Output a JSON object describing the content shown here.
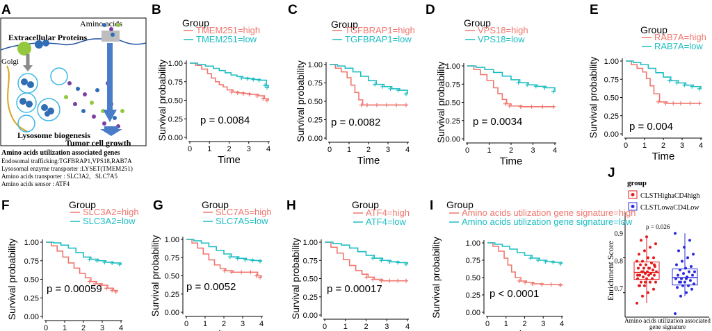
{
  "colors": {
    "high": "#F0766E",
    "low": "#1CBDC2",
    "red": "#E31A1C",
    "blue": "#2B2BDB"
  },
  "panel_a": {
    "label": "A",
    "amino_acids": "Amino acids",
    "extracellular": "Extracellular Proteins",
    "golgi": "Golgi",
    "lysosome": "Lysosome biogenesis",
    "tumor": "Tumor cell growth",
    "genes_title": "Amino acids utilization associated genes",
    "gene_lines": [
      "Endosomal trafficking:TGFBRAP1,VPS18,RAB7A",
      "Lysosomal enzyme transporter :LYSET(TMEM251)",
      "Amino acids transporter : SLC3A2,   SLC7A5",
      "Amino acids sensor : ATF4"
    ]
  },
  "panel_j": {
    "label": "J",
    "legend_title": "group",
    "groups": [
      "CLSTHighaCD4high",
      "CLSTLowaCD4Low"
    ],
    "ylabel": "Enrichment Score",
    "yticks": [
      "0.9",
      "0.8",
      "0.7"
    ],
    "xlabel_line1": "Amino acids utilization associated",
    "xlabel_line2": "gene signature",
    "p_text": "p = 0.026"
  },
  "chart_data": [
    {
      "type": "line",
      "label": "B",
      "group_title": "Group",
      "legend": [
        "TMEM251=high",
        "TMEM251=low"
      ],
      "ylabel": "Survival probability",
      "xlabel": "Time",
      "xticks": [
        "0",
        "1",
        "2",
        "3",
        "4"
      ],
      "yticks": [
        "0.00",
        "0.25",
        "0.50",
        "0.75",
        "1.00"
      ],
      "p_text": "p = 0.0084",
      "series": [
        {
          "name": "high",
          "x": [
            0,
            0.3,
            0.6,
            0.9,
            1.1,
            1.3,
            1.5,
            1.7,
            1.9,
            2.2,
            2.5,
            2.8,
            3.1,
            3.5,
            3.8,
            4.0
          ],
          "y": [
            1,
            0.97,
            0.92,
            0.86,
            0.8,
            0.75,
            0.71,
            0.68,
            0.64,
            0.61,
            0.6,
            0.59,
            0.58,
            0.56,
            0.52,
            0.5
          ]
        },
        {
          "name": "low",
          "x": [
            0,
            0.4,
            0.8,
            1.2,
            1.5,
            1.8,
            2.1,
            2.4,
            2.7,
            3.0,
            3.3,
            3.6,
            3.9,
            4.0
          ],
          "y": [
            1,
            0.98,
            0.96,
            0.93,
            0.9,
            0.87,
            0.84,
            0.82,
            0.8,
            0.79,
            0.78,
            0.77,
            0.7,
            0.67
          ]
        }
      ]
    },
    {
      "type": "line",
      "label": "C",
      "group_title": "Group",
      "legend": [
        "TGFBRAP1=high",
        "TGFBRAP1=low"
      ],
      "ylabel": "Survival probability",
      "xlabel": "Time",
      "xticks": [
        "0",
        "1",
        "2",
        "3",
        "4"
      ],
      "yticks": [
        "0.00",
        "0.25",
        "0.50",
        "0.75",
        "1.00"
      ],
      "p_text": "p = 0.0082",
      "series": [
        {
          "name": "high",
          "x": [
            0,
            0.3,
            0.6,
            0.9,
            1.1,
            1.3,
            1.5,
            1.7,
            2.0,
            2.5,
            3.0,
            3.5,
            4.0
          ],
          "y": [
            1,
            0.95,
            0.9,
            0.82,
            0.72,
            0.62,
            0.52,
            0.45,
            0.45,
            0.45,
            0.45,
            0.45,
            0.45
          ]
        },
        {
          "name": "low",
          "x": [
            0,
            0.4,
            0.8,
            1.2,
            1.6,
            2.0,
            2.4,
            2.8,
            3.2,
            3.6,
            4.0
          ],
          "y": [
            1,
            0.98,
            0.95,
            0.9,
            0.84,
            0.78,
            0.73,
            0.7,
            0.67,
            0.65,
            0.6
          ]
        }
      ]
    },
    {
      "type": "line",
      "label": "D",
      "group_title": "Group",
      "legend": [
        "VPS18=high",
        "VPS18=low"
      ],
      "ylabel": "Survival probability",
      "xlabel": "Time",
      "xticks": [
        "0",
        "1",
        "2",
        "3",
        "4"
      ],
      "yticks": [
        "0.00",
        "0.25",
        "0.50",
        "0.75",
        "1.00"
      ],
      "p_text": "p = 0.0034",
      "series": [
        {
          "name": "high",
          "x": [
            0,
            0.3,
            0.6,
            0.9,
            1.2,
            1.4,
            1.6,
            1.8,
            2.0,
            2.5,
            3.0,
            3.5,
            4.0
          ],
          "y": [
            1,
            0.95,
            0.88,
            0.8,
            0.7,
            0.62,
            0.54,
            0.48,
            0.45,
            0.44,
            0.44,
            0.44,
            0.44
          ]
        },
        {
          "name": "low",
          "x": [
            0,
            0.4,
            0.8,
            1.2,
            1.6,
            2.0,
            2.4,
            2.8,
            3.2,
            3.6,
            4.0
          ],
          "y": [
            1,
            0.98,
            0.95,
            0.91,
            0.86,
            0.81,
            0.77,
            0.74,
            0.72,
            0.7,
            0.65
          ]
        }
      ]
    },
    {
      "type": "line",
      "label": "E",
      "group_title": "Group",
      "legend": [
        "RAB7A=high",
        "RAB7A=low"
      ],
      "ylabel": "Survival probability",
      "xlabel": "Time",
      "xticks": [
        "0",
        "1",
        "2",
        "3",
        "4"
      ],
      "yticks": [
        "0.00",
        "0.25",
        "0.50",
        "0.75",
        "1.00"
      ],
      "p_text": "p = 0.004",
      "series": [
        {
          "name": "high",
          "x": [
            0,
            0.3,
            0.6,
            0.9,
            1.1,
            1.3,
            1.5,
            1.8,
            2.2,
            2.6,
            3.0,
            3.5,
            4.0
          ],
          "y": [
            1,
            0.95,
            0.9,
            0.85,
            0.76,
            0.66,
            0.55,
            0.44,
            0.42,
            0.42,
            0.42,
            0.42,
            0.42
          ]
        },
        {
          "name": "low",
          "x": [
            0,
            0.4,
            0.8,
            1.2,
            1.6,
            2.0,
            2.4,
            2.8,
            3.2,
            3.6,
            4.0
          ],
          "y": [
            1,
            0.98,
            0.95,
            0.9,
            0.84,
            0.78,
            0.73,
            0.7,
            0.67,
            0.65,
            0.62
          ]
        }
      ]
    },
    {
      "type": "line",
      "label": "F",
      "group_title": "Group",
      "legend": [
        "SLC3A2=high",
        "SLC3A2=low"
      ],
      "ylabel": "Survival probability",
      "xlabel": "Time",
      "xticks": [
        "0",
        "1",
        "2",
        "3",
        "4"
      ],
      "yticks": [
        "0.00",
        "0.25",
        "0.50",
        "0.75",
        "1.00"
      ],
      "p_text": "p = 0.00059",
      "series": [
        {
          "name": "high",
          "x": [
            0,
            0.3,
            0.6,
            0.9,
            1.2,
            1.5,
            1.8,
            2.1,
            2.4,
            2.7,
            3.0,
            3.3,
            3.6,
            3.8
          ],
          "y": [
            1,
            0.95,
            0.88,
            0.8,
            0.72,
            0.65,
            0.58,
            0.52,
            0.47,
            0.44,
            0.42,
            0.38,
            0.35,
            0.33
          ]
        },
        {
          "name": "low",
          "x": [
            0,
            0.4,
            0.8,
            1.2,
            1.6,
            2.0,
            2.4,
            2.8,
            3.2,
            3.6,
            4.0
          ],
          "y": [
            1,
            0.99,
            0.96,
            0.92,
            0.86,
            0.8,
            0.77,
            0.75,
            0.73,
            0.72,
            0.7
          ]
        }
      ]
    },
    {
      "type": "line",
      "label": "G",
      "group_title": "Group",
      "legend": [
        "SLC7A5=high",
        "SLC7A5=low"
      ],
      "ylabel": "Survival probability",
      "xlabel": "Time",
      "xticks": [
        "0",
        "1",
        "2",
        "3",
        "4"
      ],
      "yticks": [
        "0.00",
        "0.25",
        "0.50",
        "0.75",
        "1.00"
      ],
      "p_text": "p = 0.0052",
      "series": [
        {
          "name": "high",
          "x": [
            0,
            0.3,
            0.6,
            0.9,
            1.2,
            1.5,
            1.8,
            2.1,
            2.5,
            3.0,
            3.5,
            3.8,
            4.0
          ],
          "y": [
            1,
            0.95,
            0.88,
            0.8,
            0.72,
            0.65,
            0.6,
            0.57,
            0.55,
            0.55,
            0.55,
            0.5,
            0.48
          ]
        },
        {
          "name": "low",
          "x": [
            0,
            0.4,
            0.8,
            1.2,
            1.6,
            2.0,
            2.4,
            2.8,
            3.2,
            3.6,
            4.0
          ],
          "y": [
            1,
            0.98,
            0.95,
            0.9,
            0.85,
            0.8,
            0.76,
            0.74,
            0.72,
            0.71,
            0.7
          ]
        }
      ]
    },
    {
      "type": "line",
      "label": "H",
      "group_title": "Group",
      "legend": [
        "ATF4=high",
        "ATF4=low"
      ],
      "ylabel": "Survival probability",
      "xlabel": "Time",
      "xticks": [
        "0",
        "1",
        "2",
        "3",
        "4"
      ],
      "yticks": [
        "0.00",
        "0.25",
        "0.50",
        "0.75",
        "1.00"
      ],
      "p_text": "p = 0.00017",
      "series": [
        {
          "name": "high",
          "x": [
            0,
            0.3,
            0.6,
            0.9,
            1.2,
            1.5,
            1.8,
            2.1,
            2.4,
            2.8,
            3.2,
            3.6,
            4.0
          ],
          "y": [
            1,
            0.93,
            0.85,
            0.76,
            0.68,
            0.61,
            0.56,
            0.52,
            0.49,
            0.47,
            0.47,
            0.47,
            0.47
          ]
        },
        {
          "name": "low",
          "x": [
            0,
            0.4,
            0.8,
            1.2,
            1.6,
            2.0,
            2.4,
            2.8,
            3.2,
            3.6,
            4.0
          ],
          "y": [
            1,
            0.98,
            0.96,
            0.92,
            0.87,
            0.82,
            0.78,
            0.75,
            0.73,
            0.72,
            0.7
          ]
        }
      ]
    },
    {
      "type": "line",
      "label": "I",
      "group_title": "Group",
      "legend": [
        "Amino acids utilization gene signature=high",
        "Amino acids utilization gene signature=low"
      ],
      "ylabel": "Survival probability",
      "xlabel": "Time",
      "xticks": [
        "0",
        "1",
        "2",
        "3",
        "4"
      ],
      "yticks": [
        "0.00",
        "0.25",
        "0.50",
        "0.75",
        "1.00"
      ],
      "p_text": "p < 0.0001",
      "series": [
        {
          "name": "high",
          "x": [
            0,
            0.3,
            0.6,
            0.9,
            1.1,
            1.3,
            1.5,
            1.8,
            2.1,
            2.5,
            3.0,
            3.5,
            4.0
          ],
          "y": [
            1,
            0.95,
            0.88,
            0.78,
            0.68,
            0.58,
            0.5,
            0.45,
            0.43,
            0.41,
            0.4,
            0.4,
            0.39
          ]
        },
        {
          "name": "low",
          "x": [
            0,
            0.4,
            0.8,
            1.2,
            1.6,
            2.0,
            2.4,
            2.8,
            3.2,
            3.6,
            4.0
          ],
          "y": [
            1,
            0.98,
            0.95,
            0.91,
            0.86,
            0.82,
            0.78,
            0.75,
            0.73,
            0.72,
            0.7
          ]
        }
      ]
    },
    {
      "type": "box",
      "label": "J",
      "categories": [
        "CLSTHighaCD4high",
        "CLSTLowaCD4Low"
      ],
      "ylim": [
        0.63,
        0.93
      ],
      "series": [
        {
          "name": "CLSTHighaCD4high",
          "q1": 0.738,
          "median": 0.758,
          "q3": 0.788,
          "whisker_low": 0.67,
          "whisker_high": 0.86,
          "points": [
            0.67,
            0.69,
            0.7,
            0.71,
            0.72,
            0.72,
            0.73,
            0.73,
            0.73,
            0.74,
            0.74,
            0.74,
            0.745,
            0.75,
            0.75,
            0.75,
            0.755,
            0.755,
            0.76,
            0.76,
            0.76,
            0.765,
            0.77,
            0.77,
            0.77,
            0.775,
            0.78,
            0.78,
            0.785,
            0.79,
            0.79,
            0.8,
            0.8,
            0.81,
            0.82,
            0.83,
            0.84,
            0.85,
            0.86,
            0.74,
            0.75,
            0.76,
            0.77,
            0.78,
            0.72,
            0.73
          ]
        },
        {
          "name": "CLSTLowaCD4Low",
          "q1": 0.722,
          "median": 0.743,
          "q3": 0.768,
          "whisker_low": 0.69,
          "whisker_high": 0.87,
          "points": [
            0.64,
            0.69,
            0.7,
            0.71,
            0.715,
            0.72,
            0.72,
            0.725,
            0.73,
            0.73,
            0.735,
            0.74,
            0.74,
            0.745,
            0.75,
            0.75,
            0.755,
            0.76,
            0.76,
            0.765,
            0.77,
            0.775,
            0.78,
            0.79,
            0.8,
            0.81,
            0.82,
            0.83,
            0.85,
            0.87,
            0.73,
            0.74
          ]
        }
      ]
    }
  ]
}
